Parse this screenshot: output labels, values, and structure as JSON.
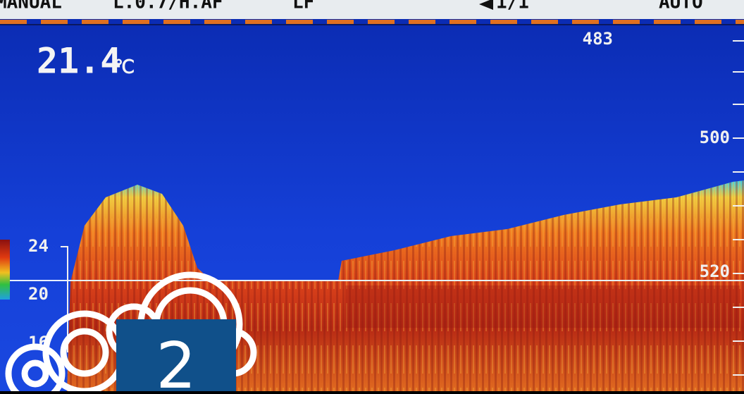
{
  "status_bar": {
    "items": [
      "MANUAL",
      "L.0.7/H.AF",
      "LF",
      "1/1",
      "AUTO"
    ]
  },
  "temperature": {
    "value": "21.4",
    "unit": "℃"
  },
  "depth_scale": {
    "labels": [
      "483",
      "500",
      "520"
    ]
  },
  "color_scale": {
    "labels": [
      "24",
      "20",
      "16"
    ]
  },
  "badge": {
    "label": "2"
  }
}
